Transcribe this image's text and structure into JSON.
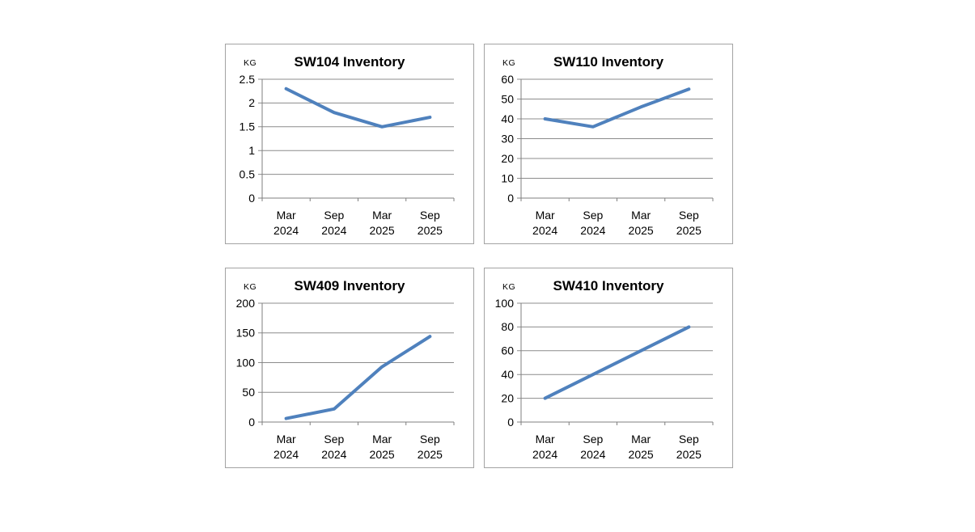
{
  "page": {
    "background": "#ffffff"
  },
  "colors": {
    "line": "#4F81BD",
    "gridline": "#8C8C8C",
    "axis": "#7F7F7F",
    "panel_border": "#A3A3A3",
    "text": "#000000"
  },
  "chart_data": [
    {
      "type": "line",
      "title": "SW104 Inventory",
      "ylabel": "KG",
      "categories": [
        "Mar 2024",
        "Sep 2024",
        "Mar 2025",
        "Sep 2025"
      ],
      "values": [
        2.3,
        1.8,
        1.5,
        1.7
      ],
      "ylim": [
        0,
        2.5
      ],
      "yticks": [
        0,
        0.5,
        1,
        1.5,
        2,
        2.5
      ],
      "grid": true,
      "legend": "none"
    },
    {
      "type": "line",
      "title": "SW110 Inventory",
      "ylabel": "KG",
      "categories": [
        "Mar 2024",
        "Sep 2024",
        "Mar 2025",
        "Sep 2025"
      ],
      "values": [
        40,
        36,
        46,
        55
      ],
      "ylim": [
        0,
        60
      ],
      "yticks": [
        0,
        10,
        20,
        30,
        40,
        50,
        60
      ],
      "grid": true,
      "legend": "none"
    },
    {
      "type": "line",
      "title": "SW409 Inventory",
      "ylabel": "KG",
      "categories": [
        "Mar 2024",
        "Sep 2024",
        "Mar 2025",
        "Sep 2025"
      ],
      "values": [
        6,
        22,
        93,
        144
      ],
      "ylim": [
        0,
        200
      ],
      "yticks": [
        0,
        50,
        100,
        150,
        200
      ],
      "grid": true,
      "legend": "none"
    },
    {
      "type": "line",
      "title": "SW410 Inventory",
      "ylabel": "KG",
      "categories": [
        "Mar 2024",
        "Sep 2024",
        "Mar 2025",
        "Sep 2025"
      ],
      "values": [
        20,
        40,
        60,
        80
      ],
      "ylim": [
        0,
        100
      ],
      "yticks": [
        0,
        20,
        40,
        60,
        80,
        100
      ],
      "grid": true,
      "legend": "none"
    }
  ]
}
